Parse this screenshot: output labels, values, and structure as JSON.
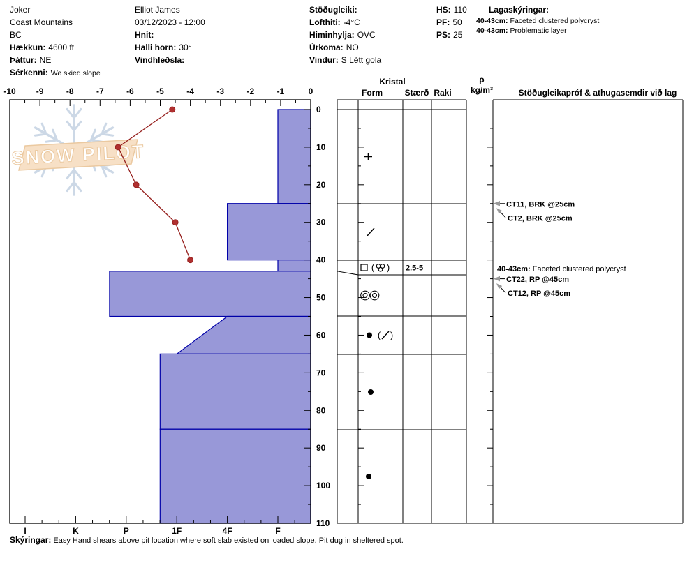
{
  "title_block": {
    "col1": {
      "line1": "Joker",
      "line2": "Coast Mountains",
      "line3": "BC",
      "l4_label": "Hækkun:",
      "l4_value": "4600 ft",
      "l5_label": "Þáttur:",
      "l5_value": "NE",
      "l6_label": "Sérkenni:",
      "l6_value": "We skied slope"
    },
    "col2": {
      "line1": "Elliot James",
      "line2": "03/12/2023 - 12:00",
      "l3_label": "Hnit:",
      "l3_value": "",
      "l4_label": "Halli horn:",
      "l4_value": "30°",
      "l5_label": "Vindhleðsla:",
      "l5_value": ""
    },
    "col3": {
      "l1_label": "Stöðugleiki:",
      "l1_value": "",
      "l2_label": "Lofthiti:",
      "l2_value": "-4°C",
      "l3_label": "Himinhylja:",
      "l3_value": "OVC",
      "l4_label": "Úrkoma:",
      "l4_value": "NO",
      "l5_label": "Vindur:",
      "l5_value": "S Létt gola"
    },
    "col4": {
      "l1_label": "HS:",
      "l1_value": "110",
      "l2_label": "PF:",
      "l2_value": "50",
      "l3_label": "PS:",
      "l3_value": "25"
    },
    "legend": {
      "header": "Lagaskýringar:",
      "entries": [
        {
          "range": "40-43cm:",
          "text": "Faceted clustered polycryst"
        },
        {
          "range": "40-43cm:",
          "text": "Problematic layer"
        }
      ]
    }
  },
  "watermark": {
    "text": "SNOW PILOT"
  },
  "chart_data": [
    {
      "type": "bar",
      "name": "hand-hardness-profile",
      "orientation": "horizontal-depth",
      "hardness_scale": [
        "I",
        "K",
        "P",
        "1F",
        "4F",
        "F"
      ],
      "depth_axis": {
        "range": [
          0,
          110
        ],
        "ticks": [
          0,
          10,
          20,
          30,
          40,
          50,
          60,
          70,
          80,
          90,
          100,
          110
        ]
      },
      "layers": [
        {
          "top_cm": 0,
          "bottom_cm": 25,
          "hardness": "F"
        },
        {
          "top_cm": 25,
          "bottom_cm": 40,
          "hardness": "4F"
        },
        {
          "top_cm": 40,
          "bottom_cm": 43,
          "hardness": "F"
        },
        {
          "top_cm": 43,
          "bottom_cm": 55,
          "hardness": "P+"
        },
        {
          "top_cm": 55,
          "bottom_cm": 65,
          "hardness_top": "4F",
          "hardness_bottom": "1F"
        },
        {
          "top_cm": 65,
          "bottom_cm": 85,
          "hardness": "1F+"
        },
        {
          "top_cm": 85,
          "bottom_cm": 110,
          "hardness": "1F+"
        }
      ]
    },
    {
      "type": "line",
      "name": "snow-temperature-profile",
      "x_ticks": [
        -10,
        -9,
        -8,
        -7,
        -6,
        -5,
        -4,
        -3,
        -2,
        -1,
        0
      ],
      "x_range": [
        -10,
        0
      ],
      "points": [
        {
          "depth_cm": 0,
          "temp_c": -4.6
        },
        {
          "depth_cm": 10,
          "temp_c": -6.4
        },
        {
          "depth_cm": 20,
          "temp_c": -5.8
        },
        {
          "depth_cm": 30,
          "temp_c": -4.5
        },
        {
          "depth_cm": 40,
          "temp_c": -4.0
        }
      ]
    },
    {
      "type": "table",
      "name": "layer-table",
      "group_header": "Kristal",
      "columns": [
        "Form",
        "Stærð",
        "Raki"
      ],
      "density_header_rho": "ρ",
      "density_header_unit": "kg/m³",
      "comments_header": "Stöðugleikapróf & athugasemdir við lag",
      "rows": [
        {
          "depth": "0-25",
          "form_symbol": "plus",
          "size": "",
          "moisture": ""
        },
        {
          "depth": "25-40",
          "form_symbol": "slash",
          "size": "",
          "moisture": ""
        },
        {
          "depth": "40-43",
          "form_symbol": "square-cluster",
          "size": "2.5-5",
          "moisture": ""
        },
        {
          "depth": "43-55",
          "form_symbol": "double-rings",
          "size": "",
          "moisture": ""
        },
        {
          "depth": "55-65",
          "form_symbol": "dot-paren-slash",
          "size": "",
          "moisture": ""
        },
        {
          "depth": "65-85",
          "form_symbol": "dot",
          "size": "",
          "moisture": ""
        },
        {
          "depth": "85-110",
          "form_symbol": "dot",
          "size": "",
          "moisture": ""
        }
      ]
    }
  ],
  "stability_tests": [
    {
      "text": "CT11, BRK @25cm",
      "depth_cm": 25,
      "arrow": "horizontal"
    },
    {
      "text": "CT2, BRK @25cm",
      "depth_cm": 25,
      "arrow": "diagonal"
    },
    {
      "text": "CT22, RP @45cm",
      "depth_cm": 45,
      "arrow": "horizontal"
    },
    {
      "text": "CT12, RP @45cm",
      "depth_cm": 45,
      "arrow": "diagonal"
    }
  ],
  "layer_note": {
    "range": "40-43cm:",
    "text": "Faceted clustered polycryst",
    "at_depth_cm": 43
  },
  "footer": {
    "label": "Skýringar:",
    "text": "Easy Hand shears above pit location where soft slab existed on loaded slope. Pit dug in sheltered spot."
  },
  "colors": {
    "bar_fill": "#9898d8",
    "bar_stroke": "#0000a8",
    "temp_line": "#96201e",
    "temp_marker": "#b03030",
    "grid": "#000000",
    "arrow": "#999999",
    "watermark_flake": "#ccd8e6",
    "watermark_banner": "#f7e0c6",
    "watermark_banner_border": "#ebc9a0",
    "watermark_text": "#ffffff"
  }
}
